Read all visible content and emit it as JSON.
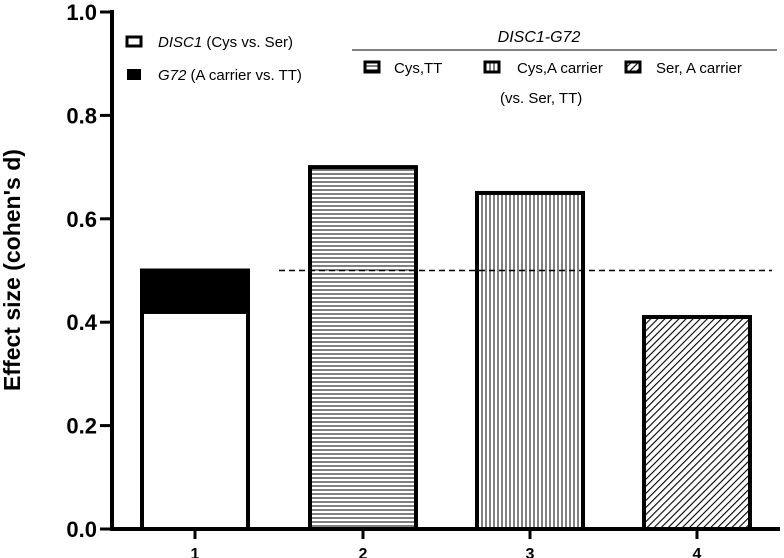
{
  "chart_data": {
    "type": "bar",
    "title": "",
    "xlabel": "",
    "ylabel": "Effect size (cohen's d)",
    "ylim": [
      0,
      1.0
    ],
    "yticks": [
      "0.0",
      "0.2",
      "0.4",
      "0.6",
      "0.8",
      "1.0"
    ],
    "yticks_values": [
      0,
      0.2,
      0.4,
      0.6,
      0.8,
      1.0
    ],
    "categories": [
      "1",
      "2",
      "3",
      "4"
    ],
    "series": [
      {
        "name": "DISC1 (Cys vs. Ser)",
        "values": [
          0.42,
          null,
          null,
          null
        ],
        "pattern": "white"
      },
      {
        "name": "G72 (A carrier vs. TT)",
        "values": [
          0.08,
          null,
          null,
          null
        ],
        "pattern": "black",
        "stacked": true
      },
      {
        "name": "Cys,TT",
        "values": [
          null,
          0.7,
          null,
          null
        ],
        "pattern": "hlines"
      },
      {
        "name": "Cys,A carrier (vs. Ser, TT)",
        "values": [
          null,
          null,
          0.65,
          null
        ],
        "pattern": "vlines"
      },
      {
        "name": "Ser, A carrier",
        "values": [
          null,
          null,
          null,
          0.41
        ],
        "pattern": "diag"
      }
    ],
    "reference_line": {
      "value": 0.5,
      "style": "dashed",
      "x_from_category": 1.5,
      "x_to_category": 4.6
    },
    "legend": {
      "group_title": "DISC1-G72",
      "entry1_italic": "DISC1",
      "entry1_rest": " (Cys vs. Ser)",
      "entry2_italic": "G72",
      "entry2_rest": " (A carrier vs. TT)",
      "entry3": "Cys,TT",
      "entry4_line1": "Cys,A carrier",
      "entry4_line2": "(vs. Ser, TT)",
      "entry5": "Ser, A carrier"
    }
  }
}
